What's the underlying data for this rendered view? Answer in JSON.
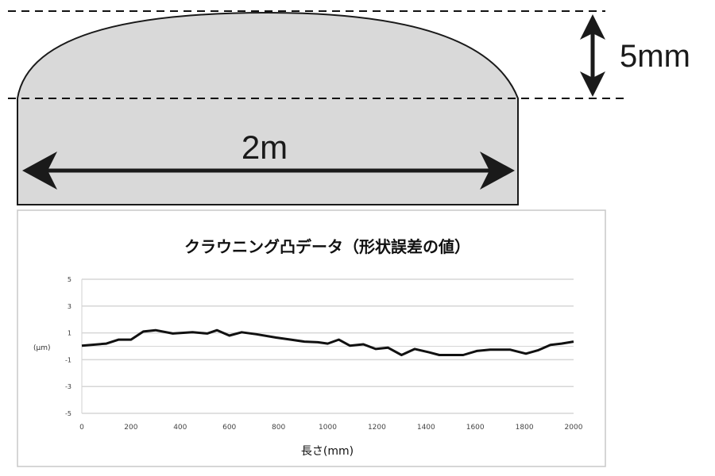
{
  "diagram": {
    "width_label": "2m",
    "height_label": "5mm",
    "fill_color": "#d9d9d9",
    "line_color": "#1a1a1a"
  },
  "chart_data": {
    "type": "line",
    "title": "クラウニング凸データ（形状誤差の値）",
    "xlabel": "長さ(mm)",
    "ylabel": "(μm)",
    "xlim": [
      0,
      2000
    ],
    "ylim": [
      -5,
      5
    ],
    "xticks": [
      "0",
      "200",
      "400",
      "600",
      "800",
      "1000",
      "1200",
      "1400",
      "1600",
      "1800",
      "2000"
    ],
    "yticks": [
      "5",
      "3",
      "1",
      "-1",
      "-3",
      "-5"
    ],
    "grid": true,
    "legend": "none",
    "line_color": "#111111",
    "x": [
      0,
      100,
      150,
      200,
      250,
      300,
      370,
      450,
      510,
      550,
      600,
      650,
      710,
      790,
      850,
      905,
      960,
      1000,
      1045,
      1090,
      1145,
      1195,
      1245,
      1300,
      1354,
      1412,
      1454,
      1551,
      1606,
      1661,
      1741,
      1806,
      1855,
      1906,
      1951,
      2000
    ],
    "y": [
      0.05,
      0.2,
      0.5,
      0.5,
      1.1,
      1.2,
      0.95,
      1.05,
      0.95,
      1.2,
      0.8,
      1.05,
      0.9,
      0.65,
      0.5,
      0.35,
      0.3,
      0.2,
      0.5,
      0.05,
      0.15,
      -0.2,
      -0.1,
      -0.65,
      -0.2,
      -0.45,
      -0.65,
      -0.65,
      -0.35,
      -0.25,
      -0.25,
      -0.55,
      -0.3,
      0.1,
      0.2,
      0.35
    ]
  }
}
